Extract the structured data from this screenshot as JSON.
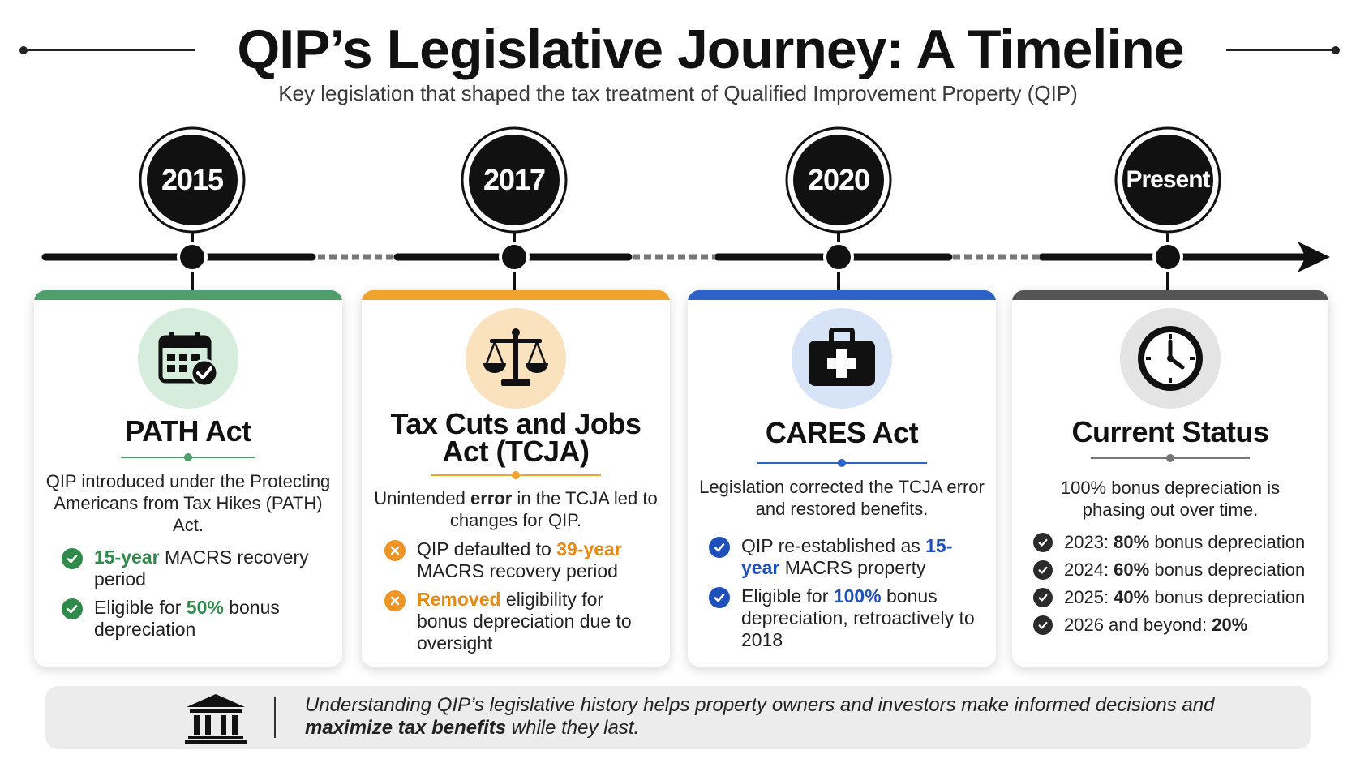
{
  "header": {
    "title": "QIP’s Legislative Journey: A Timeline",
    "subtitle": "Key legislation that shaped the tax treatment of Qualified Improvement Property (QIP)"
  },
  "milestones": [
    {
      "year": "2015",
      "accent": "#4f9e6c",
      "icon": "calendar-check-icon",
      "title": "PATH Act",
      "description": "QIP introduced under the Protecting Americans from Tax Hikes (PATH) Act.",
      "bullets": [
        {
          "icon": "check-circle-icon",
          "pre": "",
          "highlight": "15-year",
          "post": " MACRS recovery period"
        },
        {
          "icon": "check-circle-icon",
          "pre": "Eligible for ",
          "highlight": "50%",
          "post": " bonus depreciation"
        }
      ]
    },
    {
      "year": "2017",
      "accent": "#f0a32f",
      "icon": "scales-icon",
      "title": "Tax Cuts and Jobs Act (TCJA)",
      "description_pre": "Unintended ",
      "description_bold": "error",
      "description_post": " in the TCJA led to changes for QIP.",
      "bullets": [
        {
          "icon": "x-circle-icon",
          "pre": "QIP defaulted to ",
          "highlight": "39-year",
          "post": " MACRS recovery period"
        },
        {
          "icon": "x-circle-icon",
          "pre": "",
          "highlight": "Removed",
          "post": " eligibility for bonus depreciation due to oversight"
        }
      ]
    },
    {
      "year": "2020",
      "accent": "#2f62c9",
      "icon": "first-aid-kit-icon",
      "title": "CARES Act",
      "description": "Legislation corrected the TCJA error and restored benefits.",
      "bullets": [
        {
          "icon": "check-circle-icon",
          "pre": "QIP re-established as ",
          "highlight": "15-year",
          "post": " MACRS property"
        },
        {
          "icon": "check-circle-icon",
          "pre": "Eligible for ",
          "highlight": "100%",
          "post": " bonus depreciation, retroactively to 2018"
        }
      ]
    },
    {
      "year": "Present",
      "accent": "#555555",
      "icon": "clock-icon",
      "title": "Current Status",
      "description": "100% bonus depreciation is phasing out over time.",
      "schedule": [
        {
          "pre": "2023: ",
          "value": "80%",
          "post": " bonus depreciation"
        },
        {
          "pre": "2024: ",
          "value": "60%",
          "post": " bonus depreciation"
        },
        {
          "pre": "2025: ",
          "value": "40%",
          "post": " bonus depreciation"
        },
        {
          "pre": "2026 and beyond: ",
          "value": "20%",
          "post": ""
        }
      ]
    }
  ],
  "footer": {
    "icon": "courthouse-icon",
    "text_pre": "Understanding QIP’s legislative history helps property owners and investors make informed decisions and ",
    "text_bold": "maximize tax benefits",
    "text_post": " while they last."
  }
}
